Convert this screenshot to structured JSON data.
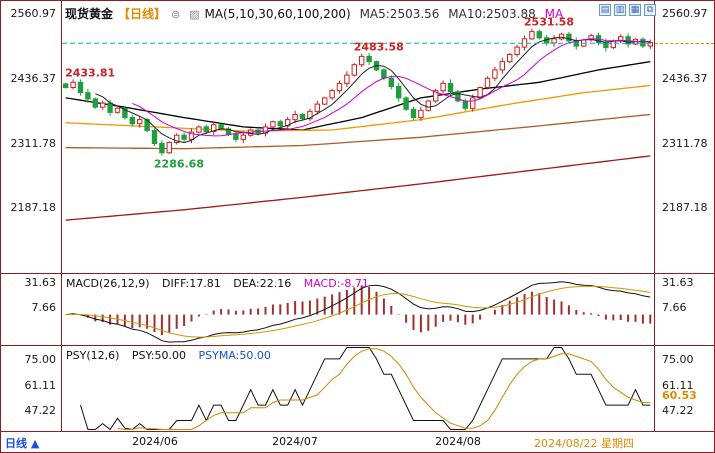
{
  "colors": {
    "frame": "#8b2020",
    "up": "#cc2222",
    "down": "#1f9e3e",
    "price_line": "#00b2b2",
    "accent_orange": "#e08a00",
    "macd_bar": "#a03030",
    "diff_line": "#111111",
    "dea_line": "#cc9900",
    "psy_line": "#111111",
    "psyma_line": "#cc8800",
    "blue": "#1a4fd6",
    "icon_blue": "#3366bb"
  },
  "header": {
    "title": "现货黄金",
    "period": "【日线】",
    "settings_glyph": "⊜",
    "indicator_glyph": "▨",
    "ma_group": "MA(5,10,30,60,100,200)",
    "ma5": "MA5:2503.56",
    "ma10": "MA10:2503.88",
    "ma_more": "MA"
  },
  "toolbar": {
    "icons": [
      "▤",
      "▥",
      "▦",
      "⧉"
    ]
  },
  "axes": {
    "main_ticks": [
      "2560.97",
      "2436.37",
      "2311.78",
      "2187.18"
    ],
    "macd_ticks": [
      "31.63",
      "7.66"
    ],
    "psy_ticks": [
      "75.00",
      "61.11",
      "47.22"
    ],
    "psy_current": "60.53"
  },
  "macd_panel": {
    "label": "MACD(26,12,9)",
    "diff": "DIFF:17.81",
    "dea": "DEA:22.16",
    "macd": "MACD:-8.71"
  },
  "psy_panel": {
    "label": "PSY(12,6)",
    "psy": "PSY:50.00",
    "psyma": "PSYMA:50.00"
  },
  "bottom": {
    "period": "日线",
    "arrow": "▲",
    "date_ticks": [
      {
        "label": "2024/06",
        "day": 12
      },
      {
        "label": "2024/07",
        "day": 31
      },
      {
        "label": "2024/08",
        "day": 53
      }
    ],
    "current_date": {
      "label": "2024/08/22 星期四",
      "day": 70
    }
  },
  "chart_data": {
    "type": "candlestick",
    "title": "现货黄金 日线",
    "main": {
      "ylim": [
        2060,
        2585
      ],
      "yticks": [
        2560.97,
        2436.37,
        2311.78,
        2187.18
      ],
      "first_open": 2425,
      "closes": [
        2418,
        2428,
        2408,
        2396,
        2380,
        2388,
        2370,
        2378,
        2360,
        2348,
        2356,
        2335,
        2310,
        2292,
        2312,
        2326,
        2318,
        2332,
        2342,
        2333,
        2346,
        2338,
        2328,
        2318,
        2326,
        2336,
        2330,
        2342,
        2352,
        2344,
        2356,
        2366,
        2358,
        2372,
        2386,
        2398,
        2412,
        2426,
        2442,
        2462,
        2478,
        2468,
        2452,
        2436,
        2420,
        2398,
        2376,
        2360,
        2374,
        2392,
        2412,
        2426,
        2410,
        2392,
        2378,
        2398,
        2418,
        2436,
        2452,
        2468,
        2482,
        2496,
        2512,
        2526,
        2514,
        2504,
        2512,
        2521,
        2508,
        2498,
        2510,
        2518,
        2505,
        2495,
        2508,
        2516,
        2502,
        2511,
        2498,
        2505
      ],
      "extremes": [
        {
          "day": 1,
          "type": "high",
          "price": 2433.81,
          "label": "2433.81",
          "label_color": "#cc2222",
          "pos": "above"
        },
        {
          "day": 13,
          "type": "low",
          "price": 2286.68,
          "label": "2286.68",
          "label_color": "#1f9e3e",
          "pos": "below"
        },
        {
          "day": 40,
          "type": "high",
          "price": 2483.58,
          "label": "2483.58",
          "label_color": "#cc2222",
          "pos": "above"
        },
        {
          "day": 63,
          "type": "high",
          "price": 2531.58,
          "label": "2531.58",
          "label_color": "#cc2222",
          "pos": "above"
        }
      ],
      "current_price": 2503.56,
      "ma5_value": 2503.56,
      "ma10_value": 2503.88,
      "ma_computed": [
        {
          "name": "MA5",
          "period": 5,
          "color": "#222222"
        },
        {
          "name": "MA10",
          "period": 10,
          "color": "#cc00cc"
        }
      ],
      "ma_trend": [
        {
          "name": "MA30",
          "color": "#000000",
          "points": [
            [
              0,
              2398
            ],
            [
              8,
              2380
            ],
            [
              16,
              2360
            ],
            [
              24,
              2342
            ],
            [
              32,
              2336
            ],
            [
              40,
              2360
            ],
            [
              48,
              2398
            ],
            [
              56,
              2415
            ],
            [
              64,
              2428
            ],
            [
              72,
              2452
            ],
            [
              79,
              2468
            ]
          ]
        },
        {
          "name": "MA60",
          "color": "#ee9900",
          "points": [
            [
              0,
              2350
            ],
            [
              12,
              2342
            ],
            [
              24,
              2334
            ],
            [
              36,
              2336
            ],
            [
              48,
              2356
            ],
            [
              60,
              2386
            ],
            [
              70,
              2408
            ],
            [
              79,
              2422
            ]
          ]
        },
        {
          "name": "MA100",
          "color": "#b05a2a",
          "points": [
            [
              0,
              2302
            ],
            [
              16,
              2300
            ],
            [
              32,
              2306
            ],
            [
              48,
              2322
            ],
            [
              64,
              2344
            ],
            [
              79,
              2366
            ]
          ]
        },
        {
          "name": "MA200",
          "color": "#a01818",
          "points": [
            [
              0,
              2162
            ],
            [
              16,
              2182
            ],
            [
              32,
              2206
            ],
            [
              48,
              2232
            ],
            [
              64,
              2260
            ],
            [
              79,
              2286
            ]
          ]
        }
      ]
    },
    "macd": {
      "ylim": [
        -30,
        40
      ],
      "yticks": [
        31.63,
        7.66
      ],
      "params": [
        26,
        12,
        9
      ],
      "diff": 17.81,
      "dea": 22.16,
      "macd": -8.71
    },
    "psy": {
      "ylim": [
        36,
        82
      ],
      "yticks": [
        75.0,
        61.11,
        47.22
      ],
      "params": [
        12,
        6
      ],
      "psy": 50.0,
      "psyma": 50.0,
      "current": 60.53
    }
  }
}
